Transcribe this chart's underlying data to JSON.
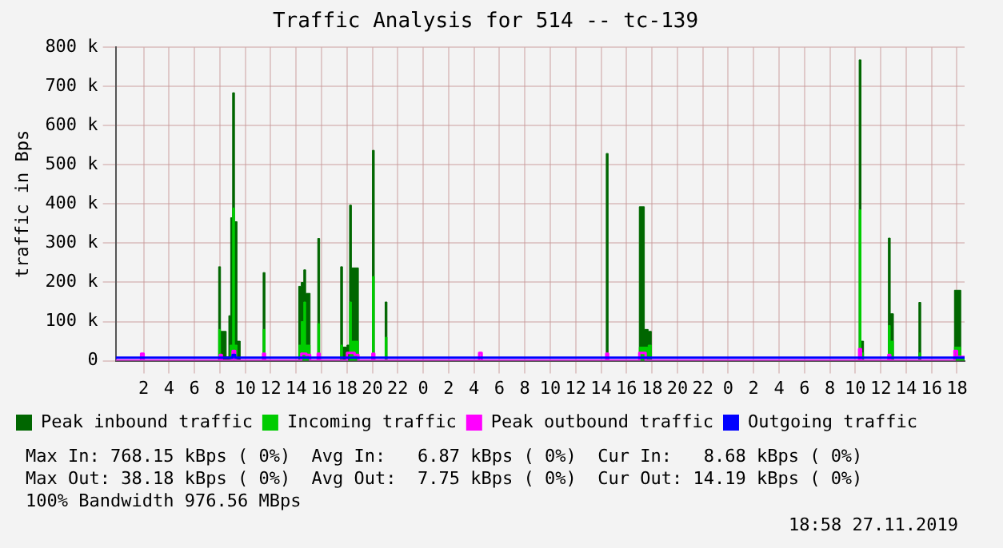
{
  "chart_data": {
    "type": "step",
    "title": "Traffic Analysis for 514 -- tc-139",
    "ylabel": "traffic in Bps",
    "xlim": [
      "2019-11-24T23:48",
      "2019-11-27T18:36"
    ],
    "xticks": [
      {
        "value": "2019-11-25T02:00",
        "label": "2"
      },
      {
        "value": "2019-11-25T04:00",
        "label": "4"
      },
      {
        "value": "2019-11-25T06:00",
        "label": "6"
      },
      {
        "value": "2019-11-25T08:00",
        "label": "8"
      },
      {
        "value": "2019-11-25T10:00",
        "label": "10"
      },
      {
        "value": "2019-11-25T12:00",
        "label": "12"
      },
      {
        "value": "2019-11-25T14:00",
        "label": "14"
      },
      {
        "value": "2019-11-25T16:00",
        "label": "16"
      },
      {
        "value": "2019-11-25T18:00",
        "label": "18"
      },
      {
        "value": "2019-11-25T20:00",
        "label": "20"
      },
      {
        "value": "2019-11-25T22:00",
        "label": "22"
      },
      {
        "value": "2019-11-26T00:00",
        "label": "0"
      },
      {
        "value": "2019-11-26T02:00",
        "label": "2"
      },
      {
        "value": "2019-11-26T04:00",
        "label": "4"
      },
      {
        "value": "2019-11-26T06:00",
        "label": "6"
      },
      {
        "value": "2019-11-26T08:00",
        "label": "8"
      },
      {
        "value": "2019-11-26T10:00",
        "label": "10"
      },
      {
        "value": "2019-11-26T12:00",
        "label": "12"
      },
      {
        "value": "2019-11-26T14:00",
        "label": "14"
      },
      {
        "value": "2019-11-26T16:00",
        "label": "16"
      },
      {
        "value": "2019-11-26T18:00",
        "label": "18"
      },
      {
        "value": "2019-11-26T20:00",
        "label": "20"
      },
      {
        "value": "2019-11-26T22:00",
        "label": "22"
      },
      {
        "value": "2019-11-27T00:00",
        "label": "0"
      },
      {
        "value": "2019-11-27T02:00",
        "label": "2"
      },
      {
        "value": "2019-11-27T04:00",
        "label": "4"
      },
      {
        "value": "2019-11-27T06:00",
        "label": "6"
      },
      {
        "value": "2019-11-27T08:00",
        "label": "8"
      },
      {
        "value": "2019-11-27T10:00",
        "label": "10"
      },
      {
        "value": "2019-11-27T12:00",
        "label": "12"
      },
      {
        "value": "2019-11-27T14:00",
        "label": "14"
      },
      {
        "value": "2019-11-27T16:00",
        "label": "16"
      },
      {
        "value": "2019-11-27T18:00",
        "label": "18"
      }
    ],
    "ylim": [
      0,
      800000
    ],
    "yticks": [
      0,
      {
        "value": 100000,
        "label": "100 k"
      },
      {
        "value": 200000,
        "label": "200 k"
      },
      {
        "value": 300000,
        "label": "300 k"
      },
      {
        "value": 400000,
        "label": "400 k"
      },
      {
        "value": 500000,
        "label": "500 k"
      },
      {
        "value": 600000,
        "label": "600 k"
      },
      {
        "value": 700000,
        "label": "700 k"
      },
      {
        "value": 800000,
        "label": "800 k"
      }
    ],
    "grid": true,
    "legend": "bottom",
    "series": [
      {
        "name": "Peak inbound traffic",
        "color": "#006600",
        "type": "area",
        "x": [
          "2019-11-24T23:48",
          "2019-11-25T07:54",
          "2019-11-25T08:03",
          "2019-11-25T08:30",
          "2019-11-25T08:42",
          "2019-11-25T08:51",
          "2019-11-25T09:00",
          "2019-11-25T09:09",
          "2019-11-25T09:21",
          "2019-11-25T09:36",
          "2019-11-25T11:24",
          "2019-11-25T11:33",
          "2019-11-25T14:12",
          "2019-11-25T14:24",
          "2019-11-25T14:36",
          "2019-11-25T14:45",
          "2019-11-25T15:06",
          "2019-11-25T15:42",
          "2019-11-25T15:51",
          "2019-11-25T17:30",
          "2019-11-25T17:39",
          "2019-11-25T18:00",
          "2019-11-25T18:12",
          "2019-11-25T18:21",
          "2019-11-25T18:54",
          "2019-11-25T20:00",
          "2019-11-25T20:09",
          "2019-11-25T21:00",
          "2019-11-25T21:09",
          "2019-11-26T14:24",
          "2019-11-26T14:33",
          "2019-11-26T17:00",
          "2019-11-26T17:24",
          "2019-11-26T17:42",
          "2019-11-26T17:57",
          "2019-11-27T10:18",
          "2019-11-27T10:27",
          "2019-11-27T10:39",
          "2019-11-27T12:36",
          "2019-11-27T12:45",
          "2019-11-27T13:00",
          "2019-11-27T15:00",
          "2019-11-27T15:09",
          "2019-11-27T17:48",
          "2019-11-27T18:18",
          "2019-11-27T18:36"
        ],
        "values": [
          0,
          240000,
          75000,
          10000,
          115000,
          365000,
          684000,
          355000,
          50000,
          0,
          225000,
          0,
          190000,
          200000,
          232000,
          172000,
          0,
          312000,
          0,
          240000,
          35000,
          40000,
          397000,
          237000,
          0,
          537000,
          0,
          150000,
          0,
          529000,
          0,
          393000,
          80000,
          75000,
          0,
          768000,
          50000,
          0,
          313000,
          120000,
          0,
          149000,
          0,
          180000,
          0,
          0
        ]
      },
      {
        "name": "Incoming traffic",
        "color": "#00cc00",
        "type": "area",
        "x": [
          "2019-11-24T23:48",
          "2019-11-25T07:54",
          "2019-11-25T08:03",
          "2019-11-25T08:48",
          "2019-11-25T09:00",
          "2019-11-25T09:09",
          "2019-11-25T09:21",
          "2019-11-25T11:24",
          "2019-11-25T11:33",
          "2019-11-25T14:12",
          "2019-11-25T14:24",
          "2019-11-25T14:36",
          "2019-11-25T14:45",
          "2019-11-25T15:06",
          "2019-11-25T15:42",
          "2019-11-25T15:51",
          "2019-11-25T17:30",
          "2019-11-25T17:39",
          "2019-11-25T18:12",
          "2019-11-25T18:21",
          "2019-11-25T18:54",
          "2019-11-25T20:00",
          "2019-11-25T20:09",
          "2019-11-25T21:00",
          "2019-11-25T21:09",
          "2019-11-26T14:24",
          "2019-11-26T14:33",
          "2019-11-26T17:00",
          "2019-11-26T17:42",
          "2019-11-26T17:57",
          "2019-11-27T10:18",
          "2019-11-27T10:27",
          "2019-11-27T10:39",
          "2019-11-27T12:36",
          "2019-11-27T12:45",
          "2019-11-27T13:00",
          "2019-11-27T15:00",
          "2019-11-27T15:09",
          "2019-11-27T17:48",
          "2019-11-27T18:18",
          "2019-11-27T18:36"
        ],
        "values": [
          0,
          80000,
          0,
          40000,
          390000,
          40000,
          0,
          80000,
          0,
          40000,
          100000,
          150000,
          40000,
          0,
          95000,
          0,
          40000,
          0,
          150000,
          50000,
          0,
          215000,
          0,
          60000,
          0,
          20000,
          0,
          35000,
          40000,
          0,
          385000,
          20000,
          0,
          90000,
          50000,
          0,
          20000,
          0,
          35000,
          10000,
          10000
        ]
      },
      {
        "name": "Peak outbound traffic",
        "color": "#ff00ff",
        "type": "step",
        "x": [
          "2019-11-24T23:48",
          "2019-11-25T01:48",
          "2019-11-25T02:00",
          "2019-11-25T08:00",
          "2019-11-25T08:09",
          "2019-11-25T09:00",
          "2019-11-25T09:12",
          "2019-11-25T11:24",
          "2019-11-25T11:33",
          "2019-11-25T14:24",
          "2019-11-25T14:48",
          "2019-11-25T15:06",
          "2019-11-25T15:42",
          "2019-11-25T15:51",
          "2019-11-25T18:00",
          "2019-11-25T18:36",
          "2019-11-25T18:54",
          "2019-11-25T20:00",
          "2019-11-25T20:09",
          "2019-11-26T04:24",
          "2019-11-26T04:36",
          "2019-11-26T14:24",
          "2019-11-26T14:33",
          "2019-11-26T17:00",
          "2019-11-26T17:30",
          "2019-11-27T10:18",
          "2019-11-27T10:27",
          "2019-11-27T12:36",
          "2019-11-27T12:45",
          "2019-11-27T17:48",
          "2019-11-27T18:00",
          "2019-11-27T18:36"
        ],
        "values": [
          0,
          18000,
          0,
          15000,
          0,
          25000,
          0,
          18000,
          0,
          18000,
          15000,
          0,
          18000,
          0,
          20000,
          15000,
          0,
          18000,
          0,
          20000,
          0,
          18000,
          0,
          20000,
          0,
          30000,
          0,
          15000,
          0,
          25000,
          10000,
          10000
        ]
      },
      {
        "name": "Outgoing traffic",
        "color": "#0000ff",
        "type": "step",
        "x": [
          "2019-11-24T23:48",
          "2019-11-25T09:00",
          "2019-11-25T09:12",
          "2019-11-27T18:36"
        ],
        "values": [
          8000,
          15000,
          8000,
          8000
        ]
      }
    ],
    "annotations": [
      "Max In: 768.15 kBps ( 0%)  Avg In:   6.87 kBps ( 0%)  Cur In:   8.68 kBps ( 0%)",
      "Max Out: 38.18 kBps ( 0%)  Avg Out:  7.75 kBps ( 0%)  Cur Out: 14.19 kBps ( 0%)",
      "100% Bandwidth 976.56 MBps",
      "18:58 27.11.2019"
    ]
  }
}
